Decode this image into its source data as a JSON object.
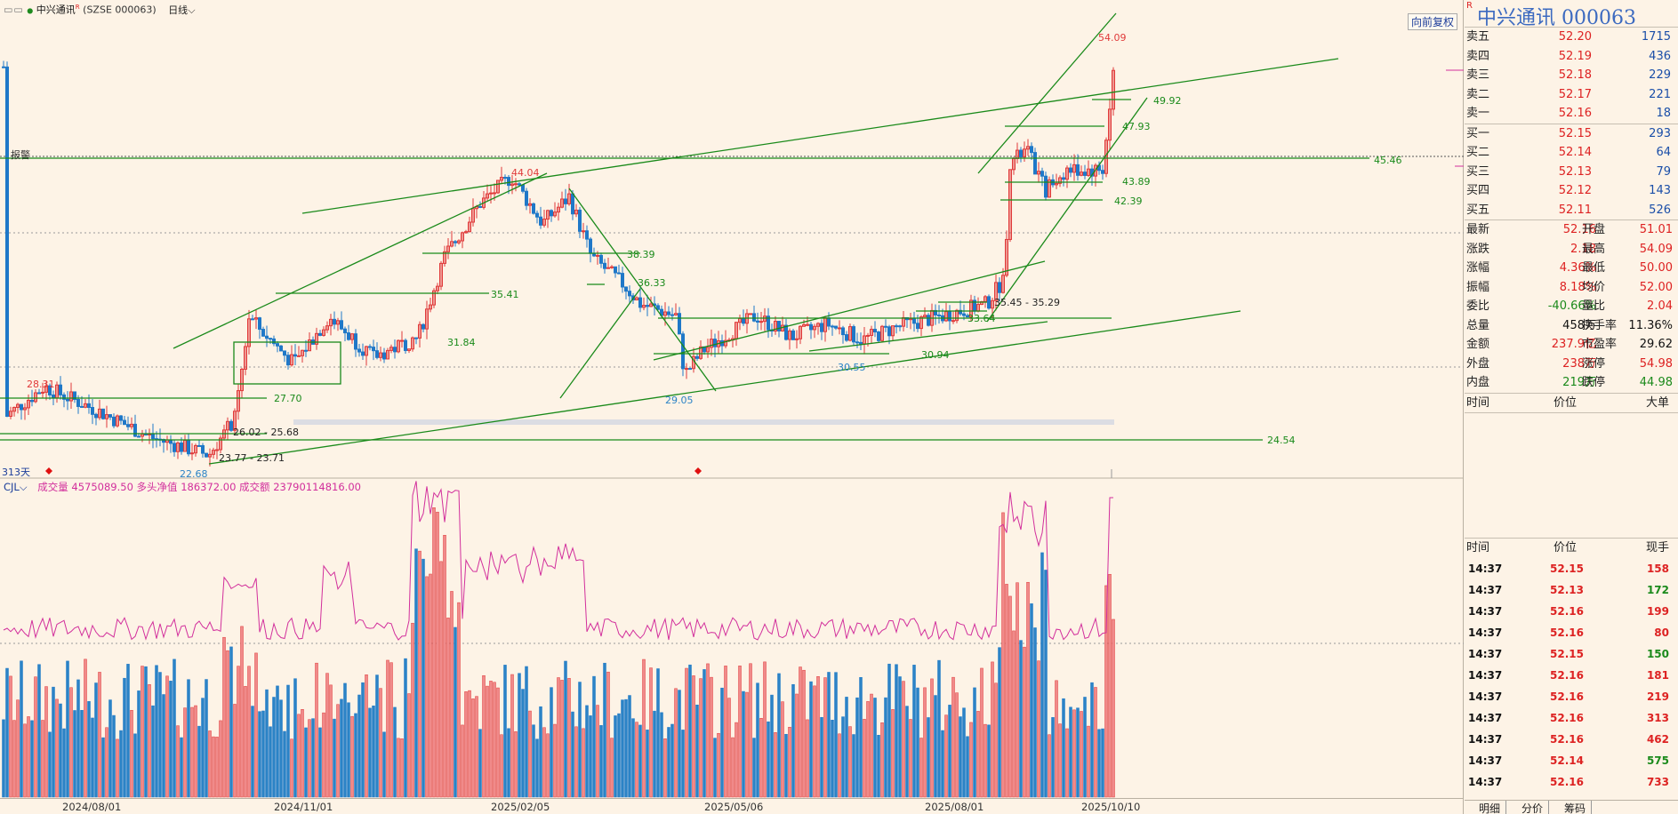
{
  "window": {
    "title_dots": "▭▭",
    "stock_name": "中兴通讯",
    "stock_sup": "R",
    "stock_code": "(SZSE 000063)",
    "period": "日线",
    "fq_label": "向前复权"
  },
  "chart": {
    "days_label": "313天",
    "alarm_label": "报警",
    "price_labels": [
      "54.09",
      "49.92",
      "47.93",
      "45.46",
      "44.04",
      "43.89",
      "42.39",
      "38.39",
      "36.33",
      "35.41",
      "35.45 - 35.29",
      "33.64",
      "31.84",
      "30.94",
      "30.55",
      "29.05",
      "28.31",
      "27.70",
      "26.02 - 25.68",
      "23.77 - 23.71",
      "24.54",
      "22.68"
    ],
    "date_labels": [
      "2024/08/01",
      "2024/11/01",
      "2025/02/05",
      "2025/05/06",
      "2025/08/01",
      "2025/10/10"
    ],
    "colors": {
      "up": "#e03a3a",
      "down": "#1f78c8",
      "trend": "#1a8a1a",
      "vol_line": "#d22f9c"
    }
  },
  "volume": {
    "indicator": "CJL",
    "k1": "成交量 4575089.50",
    "k2": "多头净值 186372.00",
    "k3": "成交额 23790114816.00"
  },
  "panel": {
    "title": "中兴通讯  000063",
    "sup": "R",
    "asks": [
      {
        "label": "卖五",
        "price": "52.20",
        "qty": "1715"
      },
      {
        "label": "卖四",
        "price": "52.19",
        "qty": "436"
      },
      {
        "label": "卖三",
        "price": "52.18",
        "qty": "229"
      },
      {
        "label": "卖二",
        "price": "52.17",
        "qty": "221"
      },
      {
        "label": "卖一",
        "price": "52.16",
        "qty": "18"
      }
    ],
    "bids": [
      {
        "label": "买一",
        "price": "52.15",
        "qty": "293"
      },
      {
        "label": "买二",
        "price": "52.14",
        "qty": "64"
      },
      {
        "label": "买三",
        "price": "52.13",
        "qty": "79"
      },
      {
        "label": "买四",
        "price": "52.12",
        "qty": "143"
      },
      {
        "label": "买五",
        "price": "52.11",
        "qty": "526"
      }
    ],
    "stats": [
      {
        "l1": "最新",
        "v1": "52.16",
        "c1": "red",
        "l2": "开盘",
        "v2": "51.01",
        "c2": "red"
      },
      {
        "l1": "涨跌",
        "v1": "2.18",
        "c1": "red",
        "l2": "最高",
        "v2": "54.09",
        "c2": "red"
      },
      {
        "l1": "涨幅",
        "v1": "4.36%",
        "c1": "red",
        "l2": "最低",
        "v2": "50.00",
        "c2": "red"
      },
      {
        "l1": "振幅",
        "v1": "8.18%",
        "c1": "red",
        "l2": "均价",
        "v2": "52.00",
        "c2": "red"
      },
      {
        "l1": "委比",
        "v1": "-40.66%",
        "c1": "green",
        "l2": "量比",
        "v2": "2.04",
        "c2": "red"
      },
      {
        "l1": "总量",
        "v1": "458万",
        "c1": "black",
        "l2": "换手率",
        "v2": "11.36%",
        "c2": "black"
      },
      {
        "l1": "金额",
        "v1": "237.9亿",
        "c1": "red",
        "l2": "市盈率",
        "v2": "29.62",
        "c2": "black"
      },
      {
        "l1": "外盘",
        "v1": "238万",
        "c1": "red",
        "l2": "涨停",
        "v2": "54.98",
        "c2": "red"
      },
      {
        "l1": "内盘",
        "v1": "219万",
        "c1": "green",
        "l2": "跌停",
        "v2": "44.98",
        "c2": "green"
      }
    ],
    "big_header": {
      "c1": "时间",
      "c2": "价位",
      "c3": "大单"
    },
    "tick_header": {
      "c1": "时间",
      "c2": "价位",
      "c3": "现手"
    },
    "ticks": [
      {
        "t": "14:37",
        "p": "52.15",
        "v": "158",
        "c": "red"
      },
      {
        "t": "14:37",
        "p": "52.13",
        "v": "172",
        "c": "green"
      },
      {
        "t": "14:37",
        "p": "52.16",
        "v": "199",
        "c": "red"
      },
      {
        "t": "14:37",
        "p": "52.16",
        "v": "80",
        "c": "red"
      },
      {
        "t": "14:37",
        "p": "52.15",
        "v": "150",
        "c": "green"
      },
      {
        "t": "14:37",
        "p": "52.16",
        "v": "181",
        "c": "red"
      },
      {
        "t": "14:37",
        "p": "52.16",
        "v": "219",
        "c": "red"
      },
      {
        "t": "14:37",
        "p": "52.16",
        "v": "313",
        "c": "red"
      },
      {
        "t": "14:37",
        "p": "52.16",
        "v": "462",
        "c": "red"
      },
      {
        "t": "14:37",
        "p": "52.14",
        "v": "575",
        "c": "green"
      },
      {
        "t": "14:37",
        "p": "52.16",
        "v": "733",
        "c": "red"
      }
    ],
    "tabs": [
      "明细",
      "分价",
      "筹码"
    ]
  }
}
